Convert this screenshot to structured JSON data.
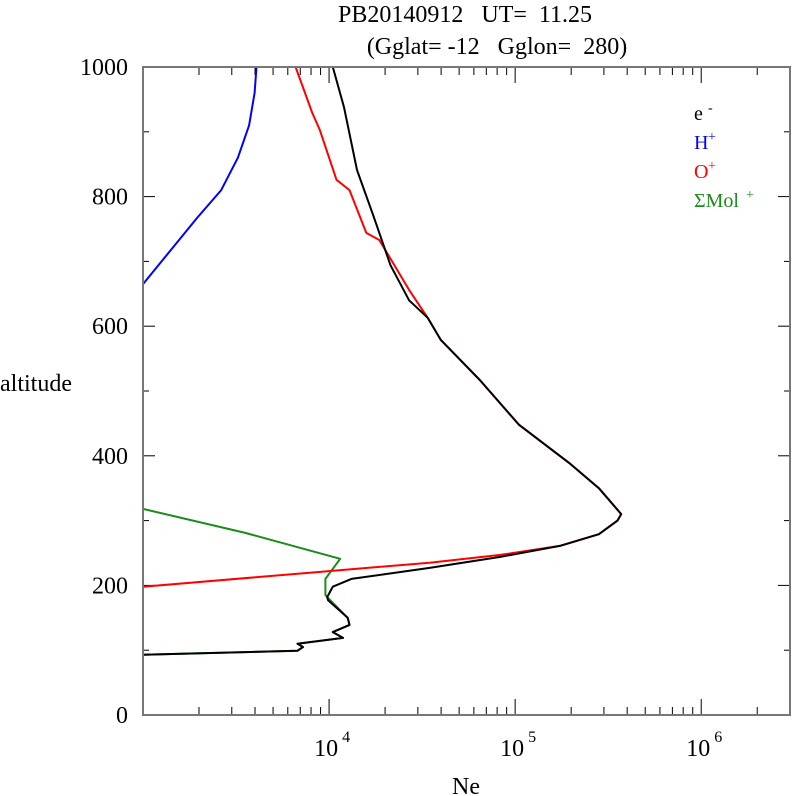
{
  "chart_data": {
    "type": "line",
    "title": "PB20140912   UT=  11.25",
    "subtitle": "(Gglat= -12   Gglon=  280)",
    "xlabel": "Ne",
    "ylabel": "altitude",
    "xscale": "log",
    "xlim": [
      1000,
      3000000
    ],
    "ylim": [
      0,
      1000
    ],
    "xticks": [
      {
        "base": "10",
        "exp": "4",
        "value": 10000
      },
      {
        "base": "10",
        "exp": "5",
        "value": 100000
      },
      {
        "base": "10",
        "exp": "6",
        "value": 1000000
      }
    ],
    "yticks": [
      "0",
      "200",
      "400",
      "600",
      "800",
      "1000"
    ],
    "legend_position": "top-right",
    "series": [
      {
        "name": "ΣMol+",
        "label": "ΣMol",
        "sup": "+",
        "color": "#1a8c1a",
        "log10_ne": [
          3.0,
          3.55,
          4.06,
          3.98,
          3.98,
          3.99,
          4.1,
          4.11,
          4.02,
          4.075,
          3.83,
          3.86,
          3.83,
          3.0
        ],
        "alt": [
          318,
          281,
          241,
          210,
          185,
          182,
          150,
          139,
          128,
          119,
          110,
          105,
          99,
          93
        ]
      },
      {
        "name": "H+",
        "label": "H",
        "sup": "+",
        "color": "#0000ff",
        "log10_ne": [
          3.0,
          3.29,
          3.42,
          3.51,
          3.57,
          3.6,
          3.61
        ],
        "alt": [
          665,
          767,
          810,
          860,
          910,
          960,
          1000
        ]
      },
      {
        "name": "O+",
        "label": "O",
        "sup": "+",
        "color": "#ff0000",
        "log10_ne": [
          3.0,
          4.0,
          4.54,
          4.92,
          5.24,
          5.45,
          5.55,
          5.57,
          5.45,
          5.29,
          5.02,
          4.81,
          4.6,
          4.53,
          4.43,
          4.27,
          4.2,
          4.11,
          4.04,
          3.95,
          3.91,
          3.82
        ],
        "alt": [
          198,
          222,
          235,
          247,
          261,
          279,
          300,
          310,
          350,
          389,
          448,
          517,
          579,
          613,
          656,
          733,
          744,
          810,
          826,
          903,
          929,
          1000
        ]
      },
      {
        "name": "e-",
        "label": "e",
        "sup": "-",
        "color": "#000000",
        "log10_ne": [
          3.0,
          3.83,
          3.86,
          3.83,
          4.075,
          4.02,
          4.11,
          4.1,
          3.995,
          3.99,
          4.02,
          4.12,
          4.54,
          4.92,
          5.24,
          5.45,
          5.55,
          5.57,
          5.45,
          5.29,
          5.02,
          4.81,
          4.6,
          4.53,
          4.43,
          4.33,
          4.24,
          4.15,
          4.08,
          4.02
        ],
        "alt": [
          93,
          99,
          105,
          110,
          119,
          128,
          139,
          150,
          177,
          182,
          198,
          210,
          227,
          244,
          261,
          279,
          300,
          310,
          350,
          389,
          448,
          517,
          579,
          613,
          640,
          694,
          769,
          841,
          938,
          1000
        ]
      }
    ],
    "legend_order": [
      "e-",
      "H+",
      "O+",
      "ΣMol+"
    ]
  }
}
